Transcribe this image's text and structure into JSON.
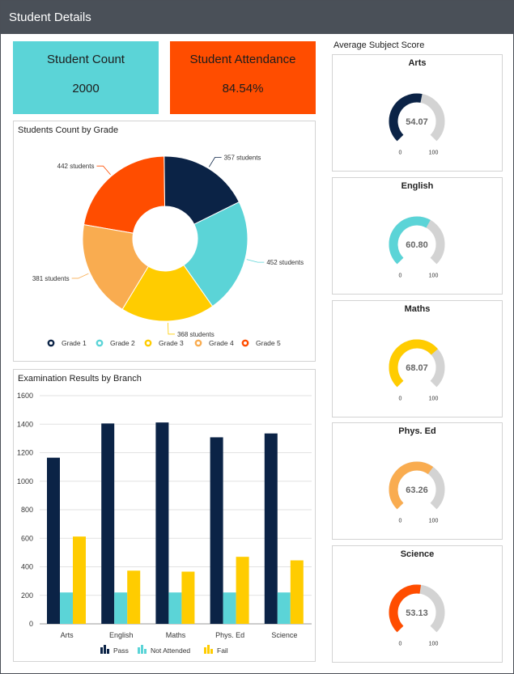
{
  "header": {
    "title": "Student Details"
  },
  "kpis": {
    "count": {
      "label": "Student Count",
      "value": "2000",
      "color": "#5bd4d7"
    },
    "attendance": {
      "label": "Student Attendance",
      "value": "84.54%",
      "color": "#ff4d00"
    }
  },
  "pie_title": "Students Count by Grade",
  "bar_title": "Examination Results by Branch",
  "gauges_title": "Average Subject Score",
  "chart_data": [
    {
      "type": "pie",
      "title": "Students Count by Grade",
      "donut": true,
      "slices": [
        {
          "name": "Grade 1",
          "value": 357,
          "label": "357 students",
          "color": "#0b2346"
        },
        {
          "name": "Grade 2",
          "value": 452,
          "label": "452 students",
          "color": "#5bd4d7"
        },
        {
          "name": "Grade 3",
          "value": 368,
          "label": "368 students",
          "color": "#ffcc00"
        },
        {
          "name": "Grade 4",
          "value": 381,
          "label": "381 students",
          "color": "#f9ac50"
        },
        {
          "name": "Grade 5",
          "value": 442,
          "label": "442 students",
          "color": "#ff4d00"
        }
      ],
      "legend_position": "bottom"
    },
    {
      "type": "bar",
      "title": "Examination Results by Branch",
      "categories": [
        "Arts",
        "English",
        "Maths",
        "Phys. Ed",
        "Science"
      ],
      "series": [
        {
          "name": "Pass",
          "values": [
            1165,
            1405,
            1412,
            1308,
            1335
          ],
          "color": "#0b2346"
        },
        {
          "name": "Not Attended",
          "values": [
            220,
            220,
            220,
            220,
            220
          ],
          "color": "#5bd4d7"
        },
        {
          "name": "Fail",
          "values": [
            612,
            373,
            366,
            470,
            445
          ],
          "color": "#ffcc00"
        }
      ],
      "ylim": [
        0,
        1600
      ],
      "yticks": [
        "0",
        "200",
        "400",
        "600",
        "800",
        "1000",
        "1200",
        "1400",
        "1600"
      ],
      "grid": true,
      "legend_position": "bottom"
    },
    {
      "type": "gauge",
      "title": "Average Subject Score",
      "min_label": "0",
      "max_label": "100",
      "min": 0,
      "max": 100,
      "gauges": [
        {
          "name": "Arts",
          "value": 54.07,
          "label": "54.07",
          "color": "#0b2346"
        },
        {
          "name": "English",
          "value": 60.8,
          "label": "60.80",
          "color": "#5bd4d7"
        },
        {
          "name": "Maths",
          "value": 68.07,
          "label": "68.07",
          "color": "#ffcc00"
        },
        {
          "name": "Phys. Ed",
          "value": 63.26,
          "label": "63.26",
          "color": "#f9ac50"
        },
        {
          "name": "Science",
          "value": 53.13,
          "label": "53.13",
          "color": "#ff4d00"
        }
      ]
    }
  ]
}
